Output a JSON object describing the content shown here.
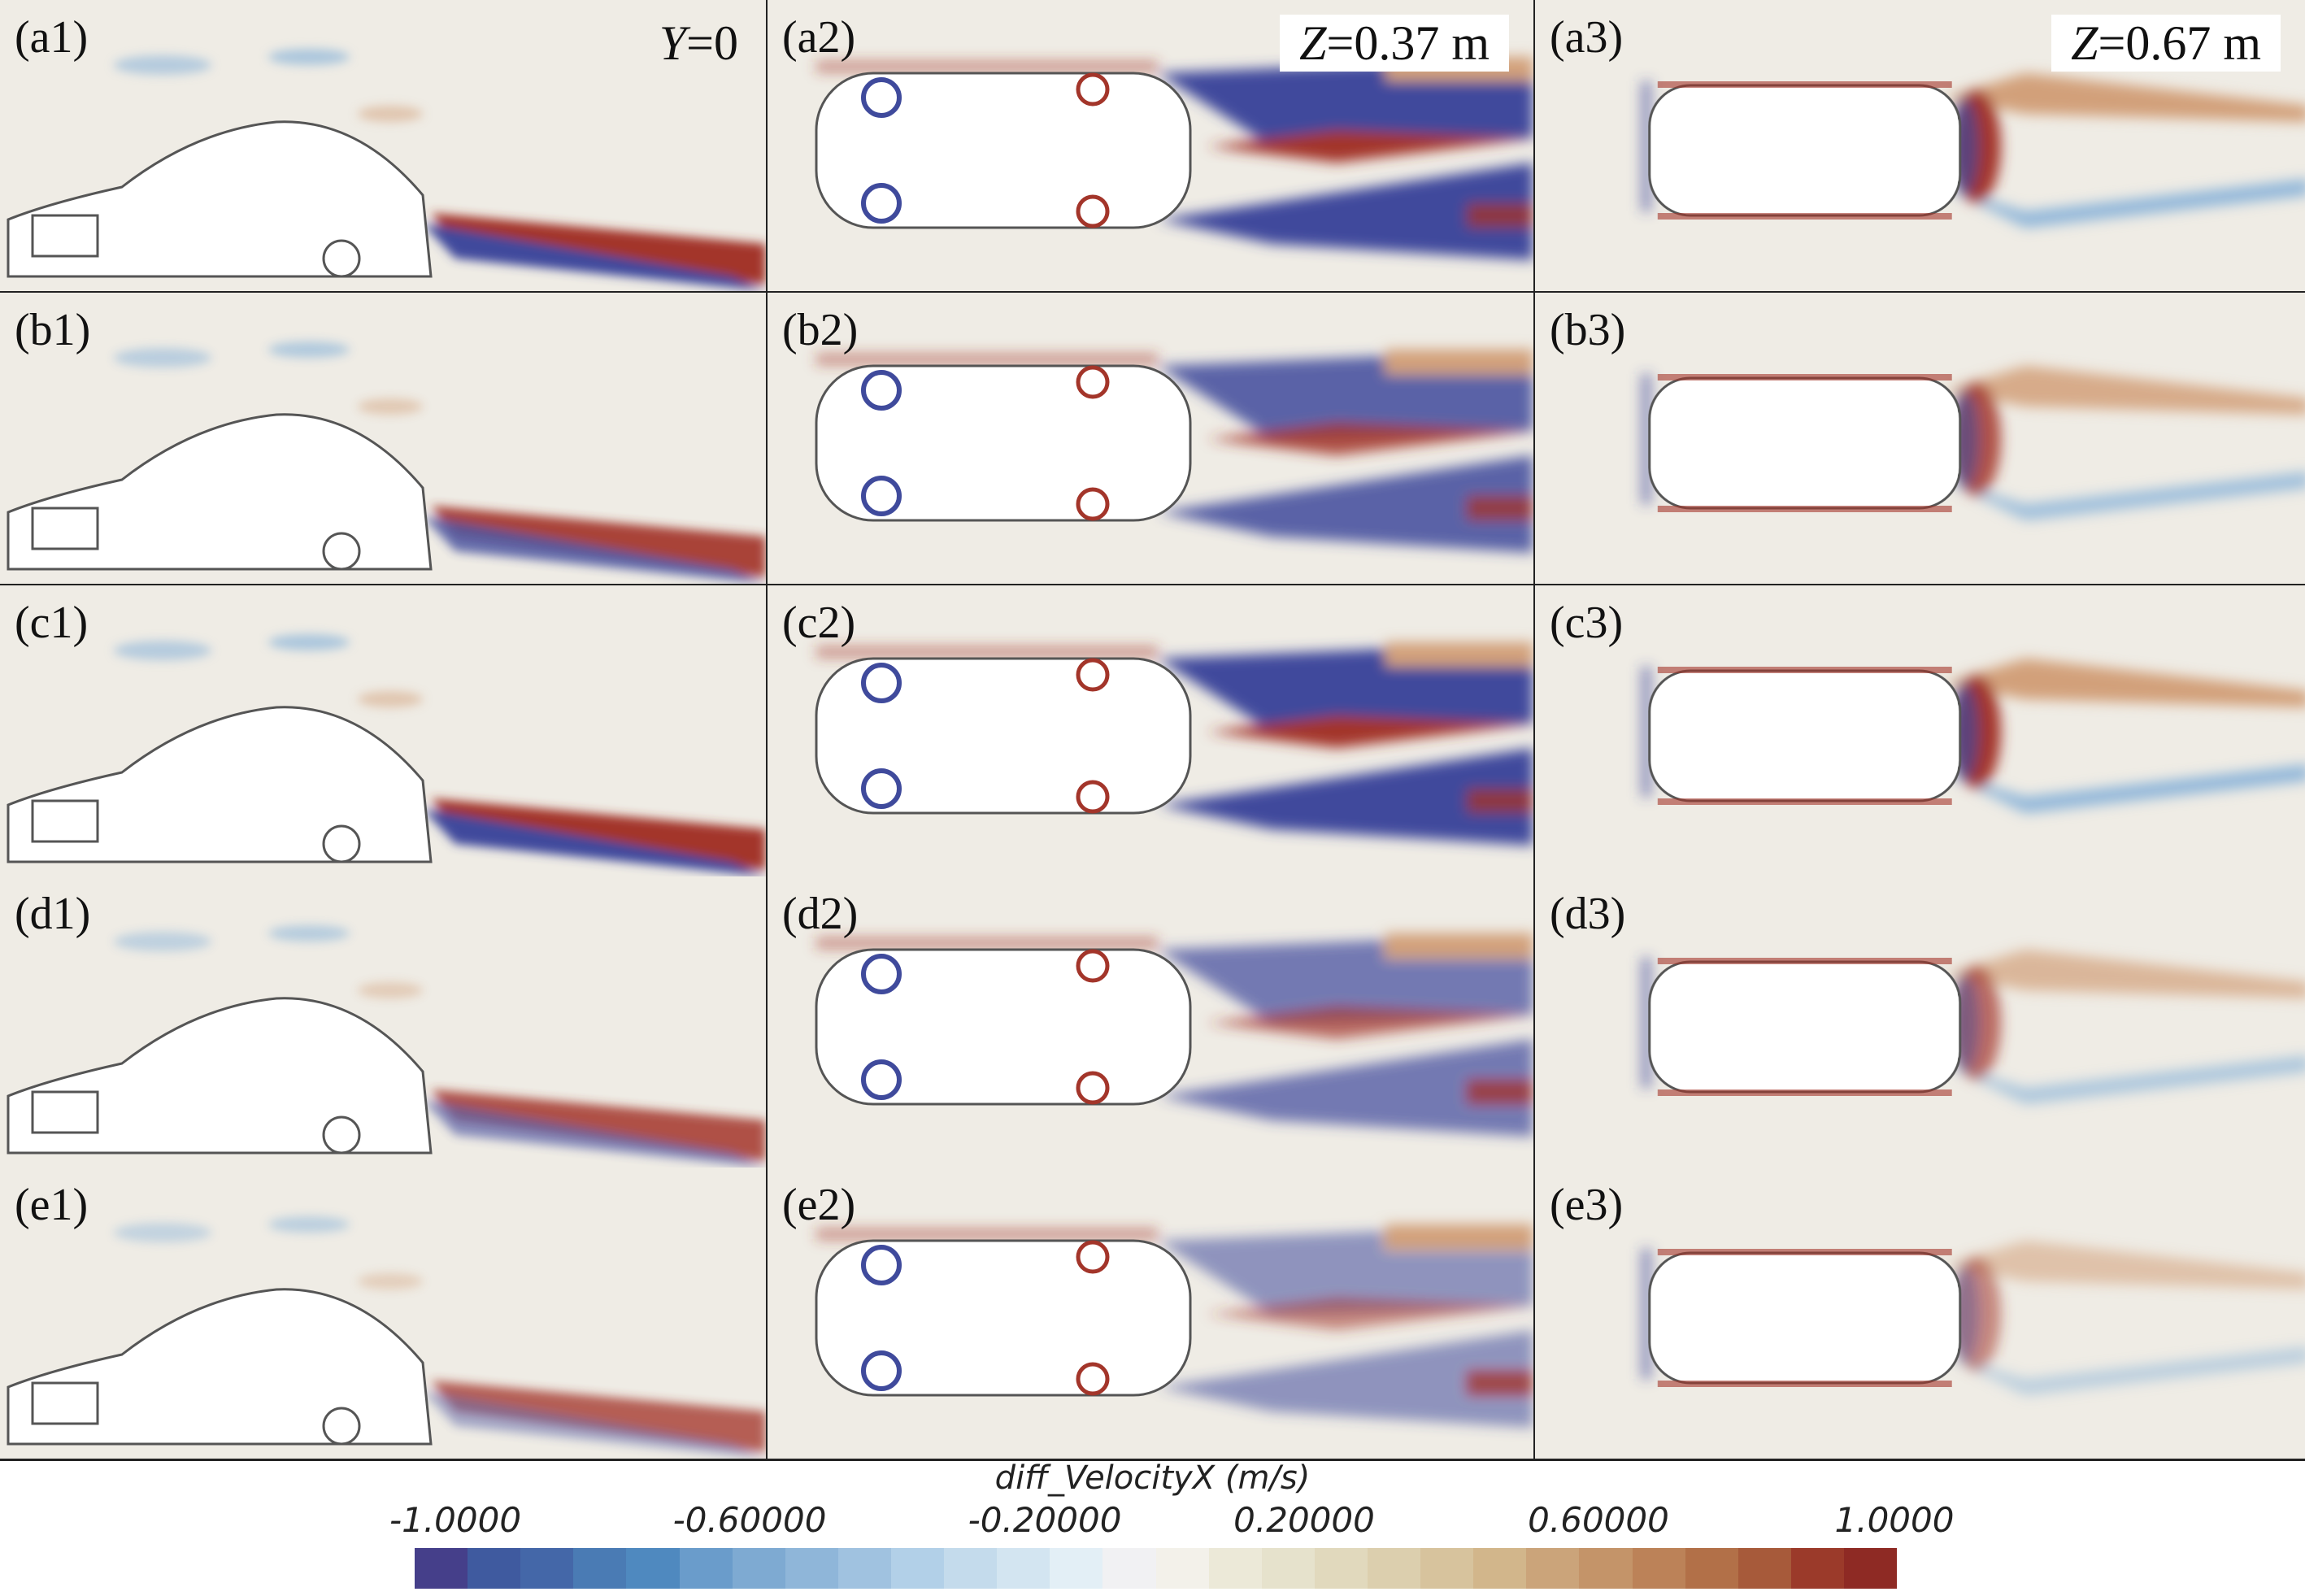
{
  "columns": [
    {
      "header_var": "Y",
      "header_rest": "=0",
      "view": "side"
    },
    {
      "header_var": "Z",
      "header_rest": "=0.37 m",
      "view": "plan"
    },
    {
      "header_var": "Z",
      "header_rest": "=0.67 m",
      "view": "plan-high"
    }
  ],
  "rows": [
    "a",
    "b",
    "c",
    "d",
    "e"
  ],
  "panel_labels": [
    [
      "(a1)",
      "(a2)",
      "(a3)"
    ],
    [
      "(b1)",
      "(b2)",
      "(b3)"
    ],
    [
      "(c1)",
      "(c2)",
      "(c3)"
    ],
    [
      "(d1)",
      "(d2)",
      "(d3)"
    ],
    [
      "(e1)",
      "(e2)",
      "(e3)"
    ]
  ],
  "colorbar": {
    "title": "diff_VelocityX (m/s)",
    "min": -1.0,
    "max": 1.0,
    "ticks": [
      "-1.0000",
      "-0.60000",
      "-0.20000",
      "0.20000",
      "0.60000",
      "1.0000"
    ],
    "colors": [
      "#453f8a",
      "#3f5a9f",
      "#4467a8",
      "#4a7bb4",
      "#4f89bf",
      "#6a9ccb",
      "#7eaad2",
      "#8fb6d9",
      "#a0c2e0",
      "#b2d0e8",
      "#c4dbec",
      "#d3e5f1",
      "#e3eff6",
      "#f1f1f3",
      "#f3f1ea",
      "#ece9d8",
      "#e6e2cc",
      "#e1d9bd",
      "#dccfae",
      "#d7c39d",
      "#d2b68b",
      "#cba47a",
      "#c49469",
      "#bc8258",
      "#b27048",
      "#a75a3a",
      "#9b3a2a",
      "#8e2a24"
    ]
  }
}
